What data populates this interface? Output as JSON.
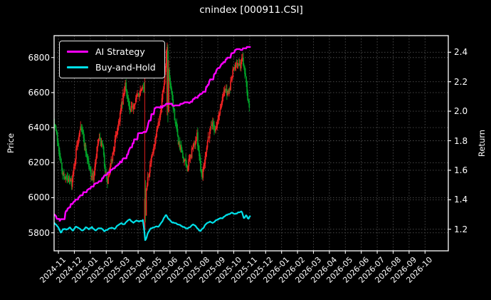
{
  "title": "cnindex [000911.CSI]",
  "colors": {
    "background": "#000000",
    "text": "#ffffff",
    "grid": "#4d4d4d",
    "plot_border": "#ffffff",
    "ai_strategy": "#ff00ff",
    "buy_and_hold": "#00e0e8",
    "candle_up": "#ee2222",
    "candle_down": "#00a028"
  },
  "legend": {
    "items": [
      {
        "label": "AI Strategy",
        "color": "#ff00ff"
      },
      {
        "label": "Buy-and-Hold",
        "color": "#00e0e8"
      }
    ],
    "position": "upper-left"
  },
  "axes": {
    "left": {
      "label": "Price",
      "ticks": [
        5800,
        6000,
        6200,
        6400,
        6600,
        6800
      ],
      "range": [
        5697,
        6925
      ]
    },
    "right": {
      "label": "Return",
      "ticks": [
        1.2,
        1.4,
        1.6,
        1.8,
        2.0,
        2.2,
        2.4
      ],
      "range": [
        1.0537,
        2.5126
      ]
    },
    "bottom": {
      "tick_labels": [
        "2024-11",
        "2024-12",
        "2025-01",
        "2025-02",
        "2025-03",
        "2025-04",
        "2025-05",
        "2025-06",
        "2025-07",
        "2025-08",
        "2025-09",
        "2025-10",
        "2025-11",
        "2025-12",
        "2026-01",
        "2026-02",
        "2026-03",
        "2026-04",
        "2026-05",
        "2026-06",
        "2026-07",
        "2026-08",
        "2026-09",
        "2026-10"
      ],
      "range_months": [
        -0.272,
        24.46
      ],
      "grid": "dotted"
    }
  },
  "chart_data": {
    "type": "candlestick+line",
    "title": "cnindex [000911.CSI]",
    "x_unit": "months since 2024-11",
    "data_extent_months": [
      -0.25,
      12.02
    ],
    "candles": {
      "name": "cnindex 000911.CSI daily bars",
      "axis": "left",
      "up_color": "#ee2222",
      "down_color": "#00a028",
      "bars": 262,
      "t_range": [
        -0.25,
        12.02
      ],
      "close_keyframes": [
        [
          -0.25,
          6430
        ],
        [
          0.0,
          6300
        ],
        [
          0.25,
          6140
        ],
        [
          0.55,
          6100
        ],
        [
          0.85,
          6090
        ],
        [
          1.1,
          6260
        ],
        [
          1.4,
          6430
        ],
        [
          1.65,
          6300
        ],
        [
          1.95,
          6160
        ],
        [
          2.2,
          6110
        ],
        [
          2.5,
          6330
        ],
        [
          2.75,
          6300
        ],
        [
          3.05,
          6080
        ],
        [
          3.35,
          6220
        ],
        [
          3.7,
          6400
        ],
        [
          4.0,
          6540
        ],
        [
          4.2,
          6650
        ],
        [
          4.5,
          6480
        ],
        [
          4.8,
          6560
        ],
        [
          5.1,
          6600
        ],
        [
          5.3,
          6660
        ],
        [
          5.38,
          6620
        ],
        [
          5.43,
          5995
        ],
        [
          5.6,
          6120
        ],
        [
          5.8,
          6200
        ],
        [
          6.1,
          6330
        ],
        [
          6.4,
          6500
        ],
        [
          6.65,
          6680
        ],
        [
          6.8,
          6850
        ],
        [
          6.95,
          6680
        ],
        [
          7.2,
          6520
        ],
        [
          7.5,
          6330
        ],
        [
          7.8,
          6230
        ],
        [
          8.1,
          6170
        ],
        [
          8.4,
          6280
        ],
        [
          8.7,
          6350
        ],
        [
          9.0,
          6120
        ],
        [
          9.3,
          6300
        ],
        [
          9.6,
          6430
        ],
        [
          9.85,
          6390
        ],
        [
          10.1,
          6480
        ],
        [
          10.4,
          6630
        ],
        [
          10.65,
          6580
        ],
        [
          10.9,
          6700
        ],
        [
          11.15,
          6780
        ],
        [
          11.35,
          6740
        ],
        [
          11.55,
          6800
        ],
        [
          11.75,
          6690
        ],
        [
          11.9,
          6560
        ],
        [
          12.0,
          6530
        ]
      ],
      "notable_bars": [
        {
          "t": 5.43,
          "open": 5820,
          "high": 6690,
          "low": 5808,
          "close": 5995
        },
        {
          "t": 5.48,
          "open": 6050,
          "high": 6100,
          "low": 5860,
          "close": 5900
        },
        {
          "t": 6.8,
          "open": 6520,
          "high": 6885,
          "low": 6470,
          "close": 6860
        },
        {
          "t": 6.86,
          "open": 6840,
          "high": 6875,
          "low": 6430,
          "close": 6490
        }
      ],
      "noise": {
        "seed": 7,
        "close_amp": 22,
        "wick_amp": 30,
        "open_gap": 6
      }
    },
    "series": [
      {
        "name": "AI Strategy",
        "axis": "right",
        "color": "#ff00ff",
        "line_width": 2.4,
        "style": "staircase",
        "texture_seed": 11,
        "points": [
          [
            -0.25,
            1.3
          ],
          [
            -0.05,
            1.268
          ],
          [
            0.1,
            1.258
          ],
          [
            0.35,
            1.305
          ],
          [
            0.85,
            1.375
          ],
          [
            1.3,
            1.42
          ],
          [
            1.7,
            1.458
          ],
          [
            2.2,
            1.5
          ],
          [
            2.6,
            1.532
          ],
          [
            3.0,
            1.57
          ],
          [
            3.5,
            1.618
          ],
          [
            3.9,
            1.657
          ],
          [
            4.3,
            1.71
          ],
          [
            4.6,
            1.765
          ],
          [
            4.85,
            1.845
          ],
          [
            5.0,
            1.852
          ],
          [
            5.5,
            1.86
          ],
          [
            5.72,
            1.945
          ],
          [
            5.9,
            2.005
          ],
          [
            6.2,
            2.03
          ],
          [
            6.5,
            2.028
          ],
          [
            6.75,
            2.048
          ],
          [
            6.92,
            2.018
          ],
          [
            7.2,
            2.04
          ],
          [
            7.6,
            2.048
          ],
          [
            8.2,
            2.062
          ],
          [
            8.6,
            2.09
          ],
          [
            9.1,
            2.128
          ],
          [
            9.5,
            2.21
          ],
          [
            9.95,
            2.28
          ],
          [
            10.4,
            2.342
          ],
          [
            10.85,
            2.392
          ],
          [
            11.25,
            2.425
          ],
          [
            11.5,
            2.418
          ],
          [
            11.7,
            2.432
          ],
          [
            11.9,
            2.438
          ],
          [
            12.02,
            2.455
          ]
        ]
      },
      {
        "name": "Buy-and-Hold",
        "axis": "right",
        "color": "#00e0e8",
        "line_width": 2.2,
        "style": "wiggle",
        "texture_seed": 23,
        "points": [
          [
            -0.25,
            1.245
          ],
          [
            0.0,
            1.215
          ],
          [
            0.15,
            1.172
          ],
          [
            0.3,
            1.205
          ],
          [
            0.5,
            1.195
          ],
          [
            0.7,
            1.212
          ],
          [
            0.9,
            1.19
          ],
          [
            1.1,
            1.22
          ],
          [
            1.3,
            1.202
          ],
          [
            1.5,
            1.186
          ],
          [
            1.7,
            1.212
          ],
          [
            1.9,
            1.198
          ],
          [
            2.1,
            1.215
          ],
          [
            2.3,
            1.19
          ],
          [
            2.5,
            1.205
          ],
          [
            2.7,
            1.212
          ],
          [
            2.9,
            1.186
          ],
          [
            3.1,
            1.2
          ],
          [
            3.3,
            1.212
          ],
          [
            3.5,
            1.2
          ],
          [
            3.7,
            1.225
          ],
          [
            3.9,
            1.242
          ],
          [
            4.1,
            1.232
          ],
          [
            4.3,
            1.252
          ],
          [
            4.5,
            1.265
          ],
          [
            4.7,
            1.242
          ],
          [
            4.9,
            1.258
          ],
          [
            5.1,
            1.252
          ],
          [
            5.3,
            1.262
          ],
          [
            5.38,
            1.2
          ],
          [
            5.45,
            1.122
          ],
          [
            5.6,
            1.172
          ],
          [
            5.75,
            1.2
          ],
          [
            5.9,
            1.212
          ],
          [
            6.1,
            1.218
          ],
          [
            6.3,
            1.222
          ],
          [
            6.5,
            1.252
          ],
          [
            6.75,
            1.298
          ],
          [
            6.9,
            1.272
          ],
          [
            7.1,
            1.252
          ],
          [
            7.3,
            1.242
          ],
          [
            7.5,
            1.232
          ],
          [
            7.7,
            1.222
          ],
          [
            7.9,
            1.212
          ],
          [
            8.1,
            1.202
          ],
          [
            8.3,
            1.222
          ],
          [
            8.5,
            1.232
          ],
          [
            8.7,
            1.212
          ],
          [
            8.9,
            1.186
          ],
          [
            9.1,
            1.212
          ],
          [
            9.3,
            1.242
          ],
          [
            9.5,
            1.252
          ],
          [
            9.7,
            1.242
          ],
          [
            9.9,
            1.262
          ],
          [
            10.1,
            1.272
          ],
          [
            10.3,
            1.278
          ],
          [
            10.5,
            1.292
          ],
          [
            10.7,
            1.302
          ],
          [
            10.9,
            1.318
          ],
          [
            11.1,
            1.302
          ],
          [
            11.3,
            1.312
          ],
          [
            11.5,
            1.318
          ],
          [
            11.65,
            1.272
          ],
          [
            11.8,
            1.298
          ],
          [
            11.9,
            1.268
          ],
          [
            12.02,
            1.29
          ]
        ]
      }
    ]
  }
}
